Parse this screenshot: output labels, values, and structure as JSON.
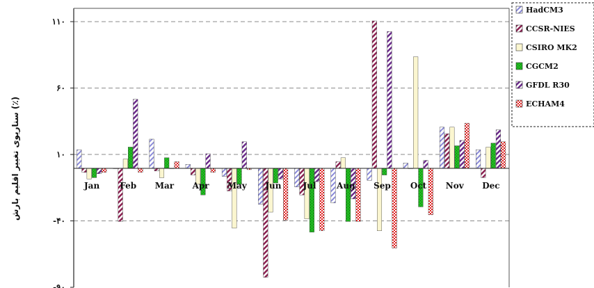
{
  "chart_data": {
    "type": "bar",
    "ylabel": "سناریوی تغییر اقلیم بارش (٪)",
    "ylim": [
      -90,
      120
    ],
    "yticks": [
      {
        "value": 110,
        "label": "۱۱۰"
      },
      {
        "value": 60,
        "label": "۶۰"
      },
      {
        "value": 10,
        "label": "۱۰"
      },
      {
        "value": -40,
        "label": "-۴۰"
      },
      {
        "value": -90,
        "label": "-۹۰"
      }
    ],
    "grid": "horizontal dashed",
    "legend_position": "right",
    "categories": [
      "Jan",
      "Feb",
      "Mar",
      "Apr",
      "May",
      "Jun",
      "Jul",
      "Aug",
      "Sep",
      "Oct",
      "Nov",
      "Dec"
    ],
    "series": [
      {
        "name": "HadCM3",
        "pattern": "diag-blue",
        "values": [
          14,
          0,
          22,
          3,
          -6,
          -27,
          -14,
          -26,
          -9,
          4,
          31,
          14
        ]
      },
      {
        "name": "CCSR-NIES",
        "pattern": "diag-maroon",
        "values": [
          -3,
          -40,
          -2,
          -5,
          -17,
          -82,
          -20,
          5,
          111,
          0,
          26,
          -7
        ]
      },
      {
        "name": "CSIRO MK2",
        "pattern": "cream",
        "values": [
          -8,
          7,
          -7,
          -12,
          -45,
          -33,
          -38,
          8,
          -47,
          84,
          31,
          16
        ]
      },
      {
        "name": "CGCM2",
        "pattern": "green",
        "values": [
          -7,
          16,
          8,
          -20,
          -12,
          -11,
          -48,
          -40,
          -5,
          -29,
          17,
          19
        ]
      },
      {
        "name": "GFDL R30",
        "pattern": "diag-purple",
        "values": [
          -4,
          52,
          0,
          11,
          20,
          -8,
          -10,
          -23,
          103,
          6,
          21,
          29
        ]
      },
      {
        "name": "ECHAM4",
        "pattern": "red-check",
        "values": [
          -3,
          -3,
          5,
          -3,
          -1,
          -39,
          -47,
          -40,
          -60,
          -35,
          34,
          20
        ]
      }
    ]
  }
}
